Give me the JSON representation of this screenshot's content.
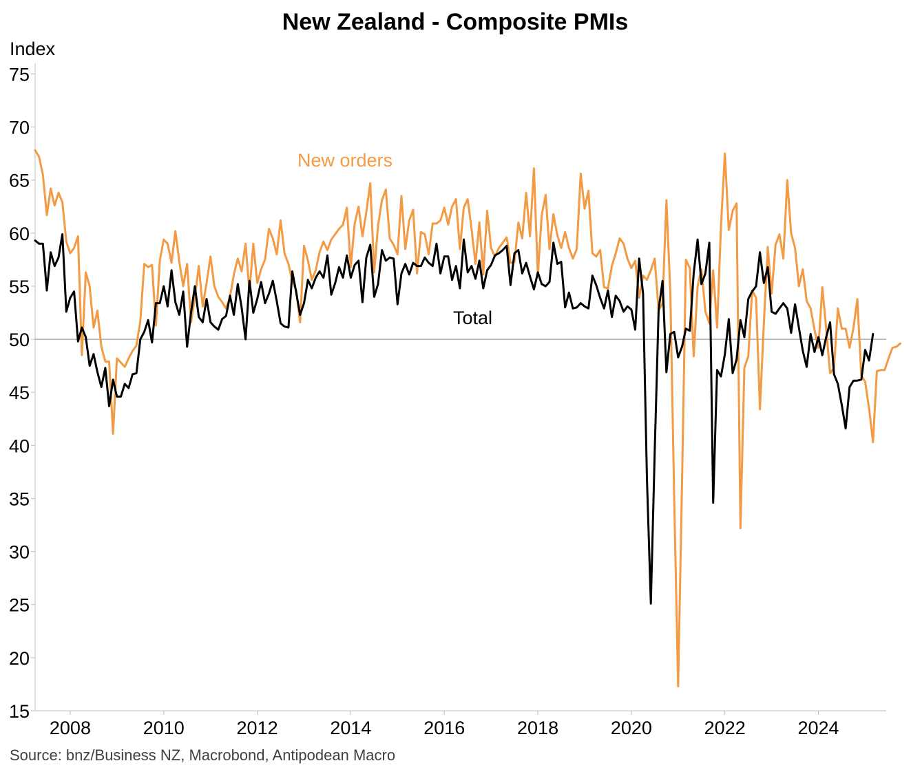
{
  "colors": {
    "new_orders": "#f39a45",
    "total": "#000000",
    "axis": "#bfbfbf",
    "reference": "#7f7f7f"
  },
  "chart_data": {
    "type": "line",
    "title": "New Zealand - Composite PMIs",
    "xlabel": "",
    "ylabel": "Index",
    "source": "Source: bnz/Business NZ, Macrobond, Antipodean Macro",
    "ylim": [
      15,
      76
    ],
    "xlim": [
      2007.25,
      2025.45
    ],
    "yticks": [
      15,
      20,
      25,
      30,
      35,
      40,
      45,
      50,
      55,
      60,
      65,
      70,
      75
    ],
    "xticks": [
      2008,
      2010,
      2012,
      2014,
      2016,
      2018,
      2020,
      2022,
      2024
    ],
    "reference_line": 50,
    "grid": false,
    "legend": "none (inline labels)",
    "annotations": [
      {
        "text": "New orders",
        "series": "New orders"
      },
      {
        "text": "Total",
        "series": "Total"
      }
    ],
    "x_start": "2007-04",
    "x_frequency": "monthly",
    "series": [
      {
        "name": "New orders",
        "values": [
          67.8,
          67.2,
          65.5,
          61.7,
          64.2,
          62.6,
          63.8,
          62.9,
          59.2,
          58.1,
          58.6,
          59.7,
          48.5,
          56.3,
          55.0,
          51.1,
          52.7,
          49.3,
          47.9,
          47.9,
          41.1,
          48.2,
          47.8,
          47.4,
          48.2,
          48.9,
          49.4,
          51.7,
          57.1,
          56.8,
          57.0,
          51.3,
          57.4,
          59.4,
          59.0,
          57.2,
          60.2,
          57.3,
          55.0,
          57.1,
          51.6,
          54.0,
          56.9,
          53.1,
          55.3,
          57.8,
          55.0,
          54.0,
          53.5,
          52.9,
          54.0,
          56.1,
          57.6,
          56.4,
          59.0,
          54.5,
          59.0,
          55.3,
          56.6,
          57.5,
          60.4,
          59.5,
          58.0,
          61.2,
          58.1,
          57.1,
          55.5,
          54.6,
          51.6,
          58.8,
          57.4,
          55.6,
          56.5,
          58.2,
          59.2,
          58.4,
          59.4,
          59.9,
          60.4,
          60.8,
          62.4,
          56.8,
          60.9,
          62.5,
          59.7,
          62.0,
          64.7,
          56.3,
          60.7,
          63.1,
          64.1,
          59.5,
          58.9,
          58.0,
          63.5,
          58.5,
          61.2,
          62.2,
          56.2,
          60.1,
          59.9,
          58.0,
          60.9,
          60.9,
          61.2,
          62.4,
          60.8,
          62.5,
          63.2,
          58.5,
          62.4,
          63.2,
          60.4,
          57.1,
          61.0,
          56.1,
          62.1,
          58.6,
          57.8,
          58.6,
          59.1,
          59.6,
          57.2,
          57.3,
          61.0,
          59.5,
          63.8,
          59.7,
          66.1,
          56.0,
          61.7,
          63.6,
          58.5,
          61.8,
          59.8,
          58.6,
          60.1,
          58.6,
          57.6,
          58.5,
          65.6,
          62.3,
          64.0,
          58.1,
          57.8,
          58.4,
          54.9,
          54.8,
          56.9,
          58.1,
          59.5,
          59.0,
          57.6,
          56.7,
          57.4,
          53.9,
          56.0,
          55.6,
          56.5,
          57.6,
          52.7,
          53.4,
          63.1,
          54.4,
          35.0,
          17.3,
          36.5,
          57.5,
          56.7,
          48.4,
          55.0,
          56.6,
          52.6,
          51.5,
          56.5,
          51.1,
          60.6,
          67.5,
          60.3,
          62.1,
          62.8,
          32.2,
          47.3,
          48.4,
          54.6,
          53.9,
          43.4,
          51.5,
          58.7,
          54.3,
          58.9,
          59.9,
          57.6,
          65.0,
          60.0,
          58.6,
          55.0,
          56.6,
          53.6,
          52.9,
          50.9,
          49.2,
          54.9,
          51.0,
          46.8,
          47.3,
          52.9,
          51.0,
          51.0,
          49.2,
          51.1,
          53.8,
          46.6,
          46.0,
          43.5,
          40.3,
          47.0,
          47.1,
          47.1,
          48.2,
          49.2,
          49.3,
          49.6
        ]
      },
      {
        "name": "Total",
        "values": [
          59.3,
          59.0,
          59.0,
          54.6,
          58.2,
          56.9,
          57.7,
          59.9,
          52.6,
          53.9,
          54.5,
          49.8,
          51.1,
          50.2,
          47.5,
          48.6,
          46.9,
          45.5,
          47.3,
          43.7,
          46.2,
          44.6,
          44.6,
          45.8,
          45.4,
          46.7,
          46.8,
          50.0,
          50.7,
          51.8,
          49.7,
          53.4,
          53.4,
          55.0,
          53.1,
          56.5,
          53.5,
          52.3,
          54.5,
          49.3,
          52.5,
          55.0,
          52.1,
          51.6,
          53.8,
          51.6,
          51.2,
          50.9,
          51.9,
          52.2,
          54.1,
          52.3,
          55.2,
          53.0,
          50.0,
          55.5,
          52.5,
          53.8,
          55.4,
          53.4,
          54.3,
          55.5,
          53.6,
          51.5,
          51.2,
          51.1,
          56.4,
          54.4,
          52.3,
          53.4,
          55.6,
          54.8,
          55.8,
          56.4,
          55.8,
          57.9,
          54.2,
          55.3,
          56.8,
          55.8,
          57.9,
          55.8,
          57.0,
          57.4,
          53.5,
          57.7,
          58.9,
          54.0,
          55.2,
          58.4,
          57.4,
          57.7,
          57.6,
          53.3,
          56.2,
          57.1,
          56.1,
          57.2,
          56.9,
          56.9,
          57.7,
          57.2,
          56.9,
          59.0,
          56.2,
          57.8,
          57.8,
          55.6,
          56.9,
          54.8,
          59.4,
          56.3,
          56.9,
          55.7,
          57.4,
          54.8,
          56.5,
          57.0,
          57.9,
          58.1,
          58.4,
          58.8,
          55.1,
          58.1,
          58.4,
          56.2,
          57.2,
          55.9,
          54.7,
          56.3,
          55.2,
          55.0,
          55.4,
          59.1,
          57.1,
          57.3,
          53.0,
          54.4,
          52.9,
          53.0,
          53.4,
          53.1,
          52.9,
          56.0,
          55.1,
          53.9,
          52.9,
          54.6,
          52.1,
          54.1,
          53.6,
          52.6,
          53.1,
          52.8,
          50.9,
          57.6,
          54.3,
          36.9,
          25.1,
          39.4,
          52.8,
          55.5,
          46.9,
          50.5,
          50.7,
          48.3,
          49.3,
          51.0,
          50.8,
          56.2,
          59.4,
          55.2,
          56.2,
          59.1,
          34.6,
          47.1,
          46.5,
          48.6,
          51.9,
          46.8,
          48.1,
          51.8,
          50.2,
          53.8,
          54.5,
          55.0,
          58.2,
          55.3,
          56.8,
          52.6,
          52.4,
          52.9,
          53.4,
          52.9,
          50.6,
          53.3,
          51.1,
          48.9,
          47.4,
          50.5,
          48.8,
          50.2,
          48.5,
          50.2,
          51.6,
          46.7,
          45.8,
          43.8,
          41.6,
          45.5,
          46.1,
          46.1,
          46.2,
          49.0,
          48.0,
          50.5
        ]
      }
    ]
  }
}
